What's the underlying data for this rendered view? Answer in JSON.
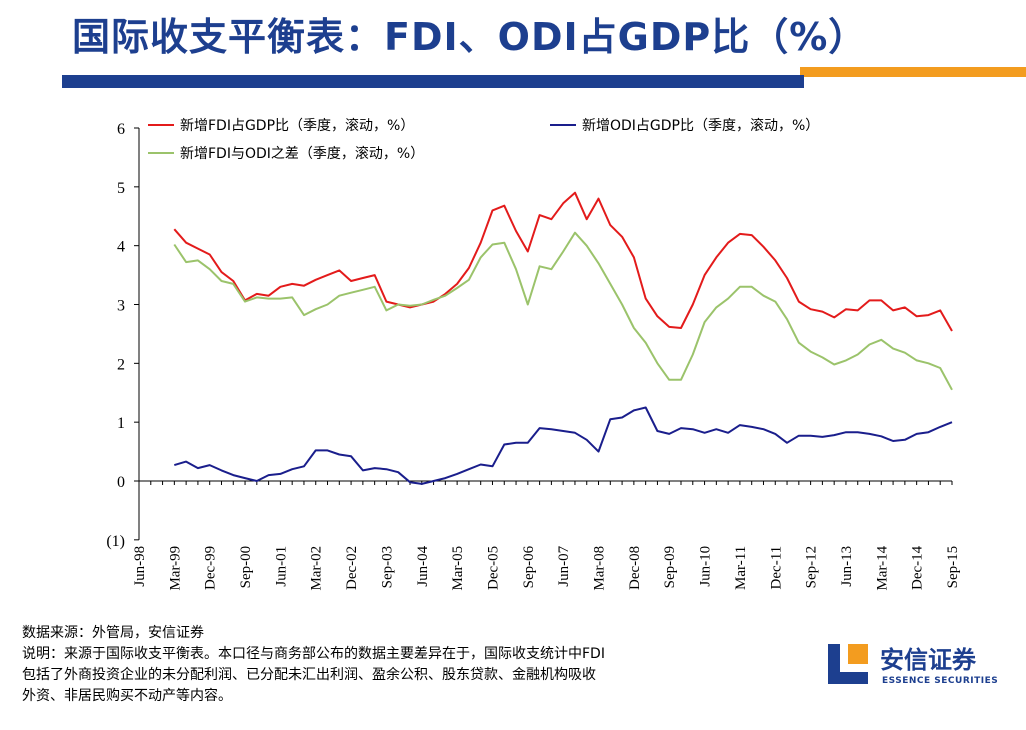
{
  "header": {
    "title": "国际收支平衡表：FDI、ODI占GDP比（%）"
  },
  "colors": {
    "brand_blue": "#1d3f8f",
    "accent_orange": "#f39c1f",
    "fdi_red": "#e31b1b",
    "odi_navy": "#1a1e8c",
    "diff_green": "#9bc36b"
  },
  "footer": {
    "source": "数据来源：外管局，安信证券",
    "note_line1": "说明：来源于国际收支平衡表。本口径与商务部公布的数据主要差异在于，国际收支统计中FDI",
    "note_line2": "包括了外商投资企业的未分配利润、已分配未汇出利润、盈余公积、股东贷款、金融机构吸收",
    "note_line3": "外资、非居民购买不动产等内容。"
  },
  "logo": {
    "cn": "安信证券",
    "en": "ESSENCE SECURITIES",
    "icon": "essence-logo-icon"
  },
  "chart_data": {
    "type": "line",
    "title": "",
    "xlabel": "",
    "ylabel": "",
    "ylim": [
      -1,
      6
    ],
    "yticks": [
      -1,
      0,
      1,
      2,
      3,
      4,
      5,
      6
    ],
    "ytick_labels": [
      "(1)",
      "0",
      "1",
      "2",
      "3",
      "4",
      "5",
      "6"
    ],
    "x": [
      "Jun-98",
      "Sep-98",
      "Dec-98",
      "Mar-99",
      "Jun-99",
      "Sep-99",
      "Dec-99",
      "Mar-00",
      "Jun-00",
      "Sep-00",
      "Dec-00",
      "Mar-01",
      "Jun-01",
      "Sep-01",
      "Dec-01",
      "Mar-02",
      "Jun-02",
      "Sep-02",
      "Dec-02",
      "Mar-03",
      "Jun-03",
      "Sep-03",
      "Dec-03",
      "Mar-04",
      "Jun-04",
      "Sep-04",
      "Dec-04",
      "Mar-05",
      "Jun-05",
      "Sep-05",
      "Dec-05",
      "Mar-06",
      "Jun-06",
      "Sep-06",
      "Dec-06",
      "Mar-07",
      "Jun-07",
      "Sep-07",
      "Dec-07",
      "Mar-08",
      "Jun-08",
      "Sep-08",
      "Dec-08",
      "Mar-09",
      "Jun-09",
      "Sep-09",
      "Dec-09",
      "Mar-10",
      "Jun-10",
      "Sep-10",
      "Dec-10",
      "Mar-11",
      "Jun-11",
      "Sep-11",
      "Dec-11",
      "Mar-12",
      "Jun-12",
      "Sep-12",
      "Dec-12",
      "Mar-13",
      "Jun-13",
      "Sep-13",
      "Dec-13",
      "Mar-14",
      "Jun-14",
      "Sep-14",
      "Dec-14",
      "Mar-15",
      "Jun-15",
      "Sep-15"
    ],
    "xtick_labels": [
      "Jun-98",
      "Mar-99",
      "Dec-99",
      "Sep-00",
      "Jun-01",
      "Mar-02",
      "Dec-02",
      "Sep-03",
      "Jun-04",
      "Mar-05",
      "Dec-05",
      "Sep-06",
      "Jun-07",
      "Mar-08",
      "Dec-08",
      "Sep-09",
      "Jun-10",
      "Mar-11",
      "Dec-11",
      "Sep-12",
      "Jun-13",
      "Mar-14",
      "Dec-14",
      "Sep-15"
    ],
    "legend_position": "top-left",
    "series": [
      {
        "name": "新增FDI占GDP比（季度，滚动，%）",
        "color": "#e31b1b",
        "values": [
          null,
          null,
          null,
          4.28,
          4.05,
          3.95,
          3.85,
          3.55,
          3.4,
          3.07,
          3.18,
          3.15,
          3.3,
          3.35,
          3.32,
          3.42,
          3.5,
          3.58,
          3.4,
          3.45,
          3.5,
          3.05,
          3.0,
          2.95,
          3.0,
          3.05,
          3.18,
          3.35,
          3.62,
          4.05,
          4.6,
          4.68,
          4.25,
          3.9,
          4.52,
          4.45,
          4.72,
          4.9,
          4.45,
          4.8,
          4.35,
          4.15,
          3.8,
          3.1,
          2.8,
          2.62,
          2.6,
          3.0,
          3.5,
          3.8,
          4.05,
          4.2,
          4.18,
          3.98,
          3.75,
          3.45,
          3.05,
          2.92,
          2.88,
          2.78,
          2.92,
          2.9,
          3.07,
          3.07,
          2.9,
          2.95,
          2.8,
          2.82,
          2.9,
          2.55
        ]
      },
      {
        "name": "新增ODI占GDP比（季度，滚动，%）",
        "color": "#1a1e8c",
        "values": [
          null,
          null,
          null,
          0.27,
          0.33,
          0.22,
          0.27,
          0.18,
          0.1,
          0.05,
          0.0,
          0.1,
          0.12,
          0.2,
          0.25,
          0.52,
          0.52,
          0.45,
          0.42,
          0.18,
          0.22,
          0.2,
          0.15,
          -0.02,
          -0.05,
          0.0,
          0.05,
          0.12,
          0.2,
          0.28,
          0.25,
          0.62,
          0.65,
          0.65,
          0.9,
          0.88,
          0.85,
          0.82,
          0.7,
          0.5,
          1.05,
          1.08,
          1.2,
          1.25,
          0.85,
          0.8,
          0.9,
          0.88,
          0.82,
          0.88,
          0.82,
          0.95,
          0.92,
          0.88,
          0.8,
          0.65,
          0.77,
          0.77,
          0.75,
          0.78,
          0.83,
          0.83,
          0.8,
          0.76,
          0.68,
          0.7,
          0.8,
          0.83,
          0.92,
          1.0
        ]
      },
      {
        "name": "新增FDI与ODI之差（季度，滚动，%）",
        "color": "#9bc36b",
        "values": [
          null,
          null,
          null,
          4.02,
          3.72,
          3.75,
          3.6,
          3.4,
          3.35,
          3.05,
          3.12,
          3.1,
          3.1,
          3.12,
          2.82,
          2.92,
          3.0,
          3.15,
          3.2,
          3.25,
          3.3,
          2.9,
          3.0,
          2.98,
          3.0,
          3.08,
          3.15,
          3.28,
          3.42,
          3.8,
          4.02,
          4.05,
          3.6,
          3.0,
          3.65,
          3.6,
          3.9,
          4.22,
          4.0,
          3.7,
          3.35,
          3.0,
          2.6,
          2.35,
          2.0,
          1.72,
          1.72,
          2.15,
          2.7,
          2.95,
          3.1,
          3.3,
          3.3,
          3.15,
          3.05,
          2.75,
          2.35,
          2.2,
          2.1,
          1.98,
          2.05,
          2.15,
          2.32,
          2.4,
          2.25,
          2.18,
          2.05,
          2.0,
          1.92,
          1.55
        ]
      }
    ]
  }
}
